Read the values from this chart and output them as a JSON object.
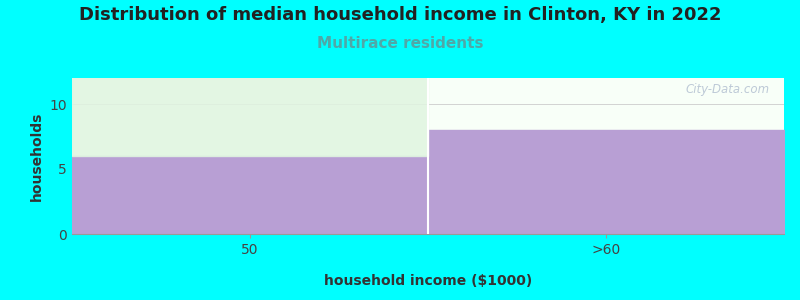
{
  "title": "Distribution of median household income in Clinton, KY in 2022",
  "subtitle": "Multirace residents",
  "xlabel": "household income ($1000)",
  "ylabel": "households",
  "categories": [
    "50",
    ">60"
  ],
  "values": [
    6,
    8
  ],
  "bar_color": "#b89fd4",
  "background_color": "#00ffff",
  "plot_bg_top": "#f5fff5",
  "plot_bg_bottom": "#e8f8e8",
  "ylim": [
    0,
    12
  ],
  "yticks": [
    0,
    5,
    10
  ],
  "title_fontsize": 13,
  "subtitle_fontsize": 11,
  "subtitle_color": "#4fa8a8",
  "label_fontsize": 10,
  "watermark": "City-Data.com",
  "green_overlay_color": "#e0f5e0",
  "tick_label_fontsize": 10
}
